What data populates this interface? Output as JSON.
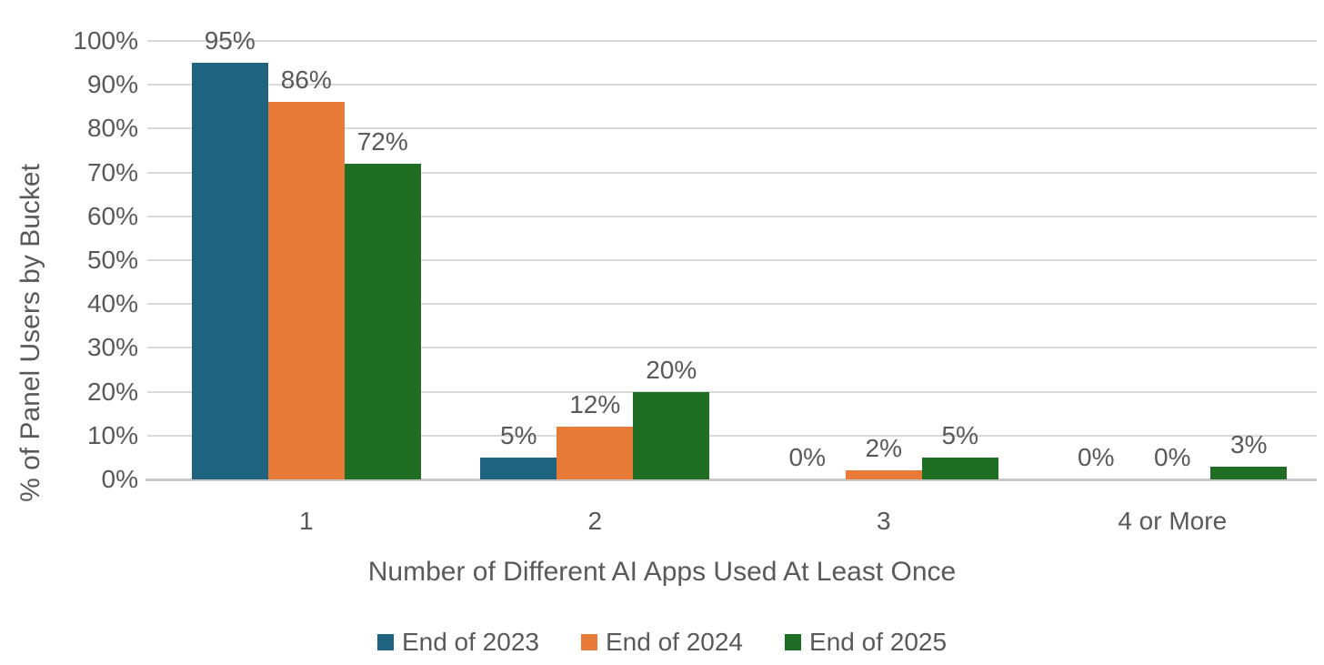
{
  "chart_data": {
    "type": "bar",
    "title": "",
    "xlabel": "Number of Different AI Apps Used At Least Once",
    "ylabel": "% of Panel Users by Bucket",
    "categories": [
      "1",
      "2",
      "3",
      "4 or More"
    ],
    "series": [
      {
        "name": "End of 2023",
        "color": "#1e6480",
        "values": [
          95,
          5,
          0,
          0
        ],
        "labels": [
          "95%",
          "5%",
          "0%",
          "0%"
        ]
      },
      {
        "name": "End of 2024",
        "color": "#e87a38",
        "values": [
          86,
          12,
          2,
          0
        ],
        "labels": [
          "86%",
          "12%",
          "2%",
          "0%"
        ]
      },
      {
        "name": "End of 2025",
        "color": "#206e24",
        "values": [
          72,
          20,
          5,
          3
        ],
        "labels": [
          "72%",
          "20%",
          "5%",
          "3%"
        ]
      }
    ],
    "ylim": [
      0,
      100
    ],
    "y_tick_step": 10,
    "y_tick_labels": [
      "0%",
      "10%",
      "20%",
      "30%",
      "40%",
      "50%",
      "60%",
      "70%",
      "80%",
      "90%",
      "100%"
    ],
    "grid": true,
    "legend_position": "bottom",
    "colors": {
      "gridline": "#d9d9d9",
      "baseline": "#c9c9c9",
      "text": "#595959",
      "background": "#ffffff"
    }
  }
}
